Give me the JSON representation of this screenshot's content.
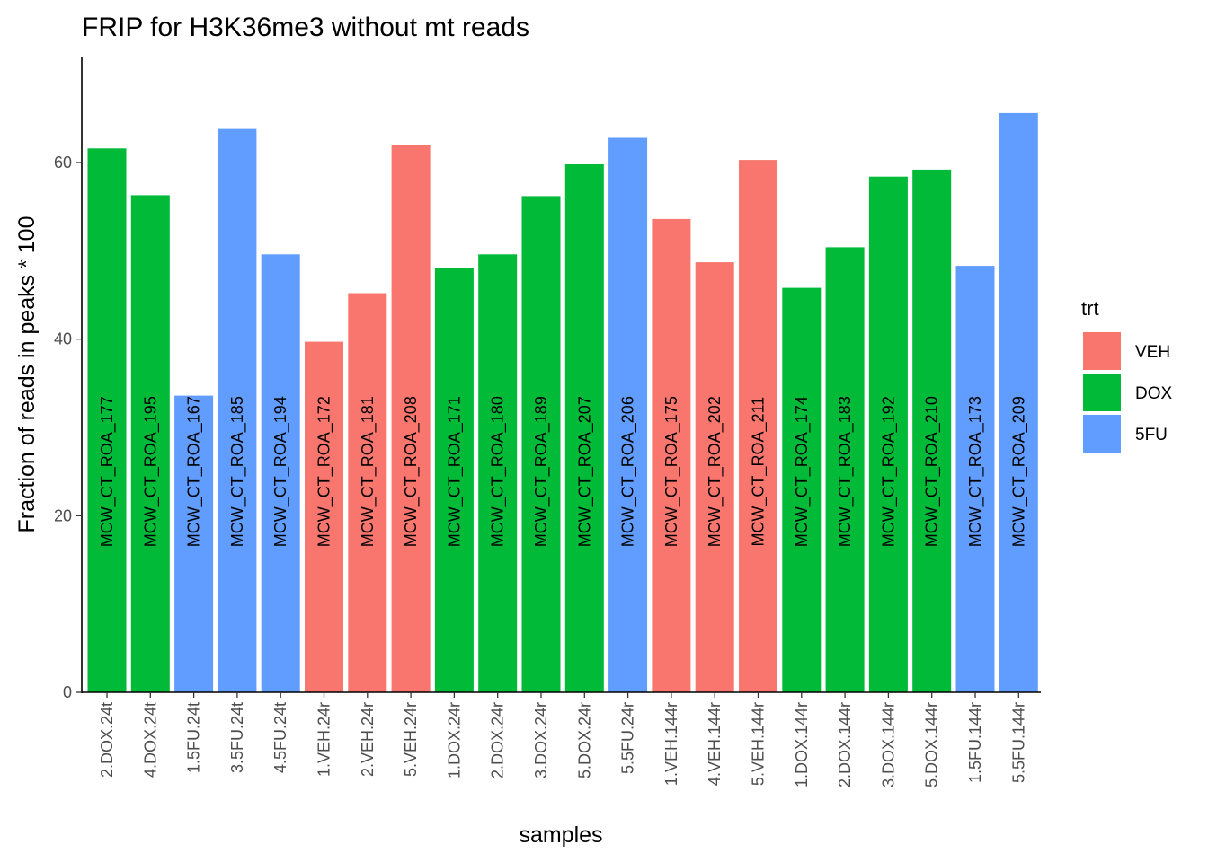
{
  "chart_data": {
    "type": "bar",
    "title": "FRIP for H3K36me3 without mt reads",
    "xlabel": "samples",
    "ylabel": "Fraction of reads in peaks * 100",
    "ylim": [
      0,
      72
    ],
    "yticks": [
      0,
      20,
      40,
      60
    ],
    "grid": false,
    "legend_position": "right",
    "legend_title": "trt",
    "groups": [
      {
        "name": "VEH",
        "color": "#F8766D"
      },
      {
        "name": "DOX",
        "color": "#00BA38"
      },
      {
        "name": "5FU",
        "color": "#619CFF"
      }
    ],
    "categories": [
      "2.DOX.24t",
      "4.DOX.24t",
      "1.5FU.24t",
      "3.5FU.24t",
      "4.5FU.24t",
      "1.VEH.24r",
      "2.VEH.24r",
      "5.VEH.24r",
      "1.DOX.24r",
      "2.DOX.24r",
      "3.DOX.24r",
      "5.DOX.24r",
      "5.5FU.24r",
      "1.VEH.144r",
      "4.VEH.144r",
      "5.VEH.144r",
      "1.DOX.144r",
      "2.DOX.144r",
      "3.DOX.144r",
      "5.DOX.144r",
      "1.5FU.144r",
      "5.5FU.144r"
    ],
    "values": [
      61.6,
      56.3,
      33.6,
      63.8,
      49.6,
      39.7,
      45.2,
      62.0,
      48.0,
      49.6,
      56.2,
      59.8,
      62.8,
      53.6,
      48.7,
      60.3,
      45.8,
      50.4,
      58.4,
      59.2,
      48.3,
      65.6
    ],
    "trt": [
      "DOX",
      "DOX",
      "5FU",
      "5FU",
      "5FU",
      "VEH",
      "VEH",
      "VEH",
      "DOX",
      "DOX",
      "DOX",
      "DOX",
      "5FU",
      "VEH",
      "VEH",
      "VEH",
      "DOX",
      "DOX",
      "DOX",
      "DOX",
      "5FU",
      "5FU"
    ],
    "bar_labels": [
      "MCW_CT_ROA_177",
      "MCW_CT_ROA_195",
      "MCW_CT_ROA_167",
      "MCW_CT_ROA_185",
      "MCW_CT_ROA_194",
      "MCW_CT_ROA_172",
      "MCW_CT_ROA_181",
      "MCW_CT_ROA_208",
      "MCW_CT_ROA_171",
      "MCW_CT_ROA_180",
      "MCW_CT_ROA_189",
      "MCW_CT_ROA_207",
      "MCW_CT_ROA_206",
      "MCW_CT_ROA_175",
      "MCW_CT_ROA_202",
      "MCW_CT_ROA_211",
      "MCW_CT_ROA_174",
      "MCW_CT_ROA_183",
      "MCW_CT_ROA_192",
      "MCW_CT_ROA_210",
      "MCW_CT_ROA_173",
      "MCW_CT_ROA_209"
    ],
    "bar_label_y": 25
  }
}
